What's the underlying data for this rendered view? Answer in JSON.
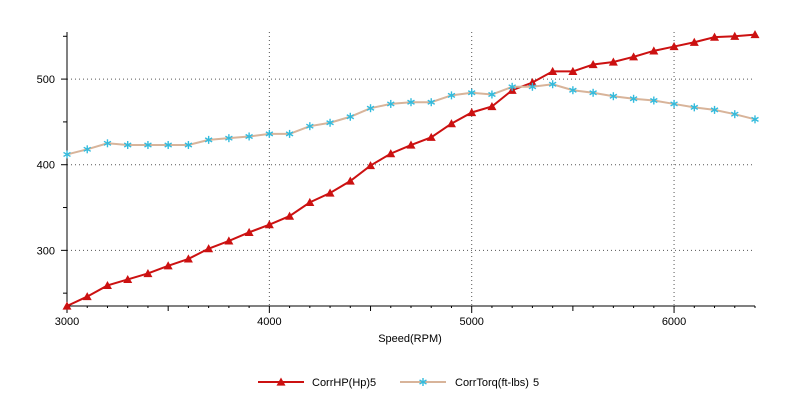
{
  "chart_data": {
    "type": "line",
    "xlabel": "Speed(RPM)",
    "xlim": [
      3000,
      6400
    ],
    "ylim": [
      235,
      555
    ],
    "x_ticks": [
      3000,
      4000,
      5000,
      6000
    ],
    "y_ticks": [
      300,
      400,
      500
    ],
    "grid": true,
    "legend_position": "bottom",
    "x": [
      3000,
      3100,
      3200,
      3300,
      3400,
      3500,
      3600,
      3700,
      3800,
      3900,
      4000,
      4100,
      4200,
      4300,
      4400,
      4500,
      4600,
      4700,
      4800,
      4900,
      5000,
      5100,
      5200,
      5300,
      5400,
      5500,
      5600,
      5700,
      5800,
      5900,
      6000,
      6100,
      6200,
      6300,
      6400
    ],
    "series": [
      {
        "name": "CorrHP(Hp)",
        "run": "5",
        "color": "#cc1111",
        "marker": "triangle",
        "values": [
          235,
          246,
          259,
          266,
          273,
          282,
          290,
          302,
          311,
          321,
          330,
          340,
          356,
          367,
          381,
          399,
          413,
          423,
          432,
          448,
          461,
          468,
          487,
          496,
          509,
          509,
          517,
          520,
          526,
          533,
          538,
          543,
          549,
          550,
          552
        ]
      },
      {
        "name": "CorrTorq(ft-lbs)",
        "run": "5",
        "color": "#d8b49a",
        "marker_color": "#33bbdd",
        "marker": "asterisk",
        "values": [
          412,
          418,
          425,
          423,
          423,
          423,
          423,
          429,
          431,
          433,
          436,
          436,
          445,
          449,
          456,
          466,
          471,
          473,
          473,
          481,
          484,
          482,
          491,
          491,
          494,
          487,
          484,
          480,
          477,
          475,
          471,
          467,
          464,
          459,
          453
        ]
      }
    ]
  }
}
